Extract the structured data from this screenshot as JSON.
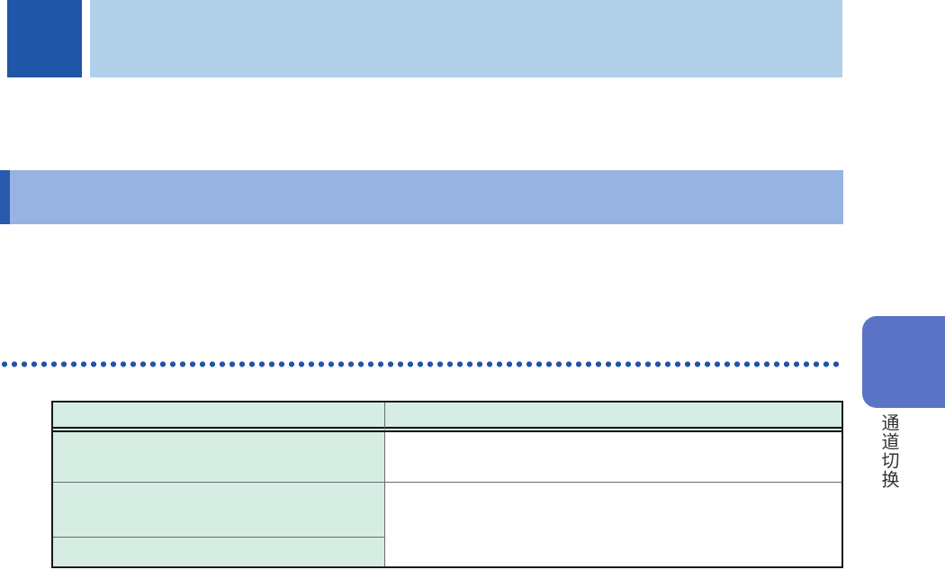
{
  "document": {
    "side_tab": {
      "label": "通道切换"
    },
    "table": {
      "header": {
        "col1": "",
        "col2": ""
      },
      "rows": [
        {
          "label": "",
          "value": ""
        },
        {
          "label": "",
          "value": ""
        },
        {
          "label": ""
        }
      ]
    }
  },
  "colors": {
    "chapter-square": "#2056a8",
    "chapter-bar": "#b2d0ea",
    "section-stripe": "#2a5aad",
    "section-bar": "#97b3e1",
    "dot": "#2553a8",
    "tab": "#5b73c4",
    "tab-label": "#333333",
    "table-header-bg": "#d5ede3",
    "table-border": "#1a1a1a",
    "table-grid": "#6b6b6b"
  }
}
